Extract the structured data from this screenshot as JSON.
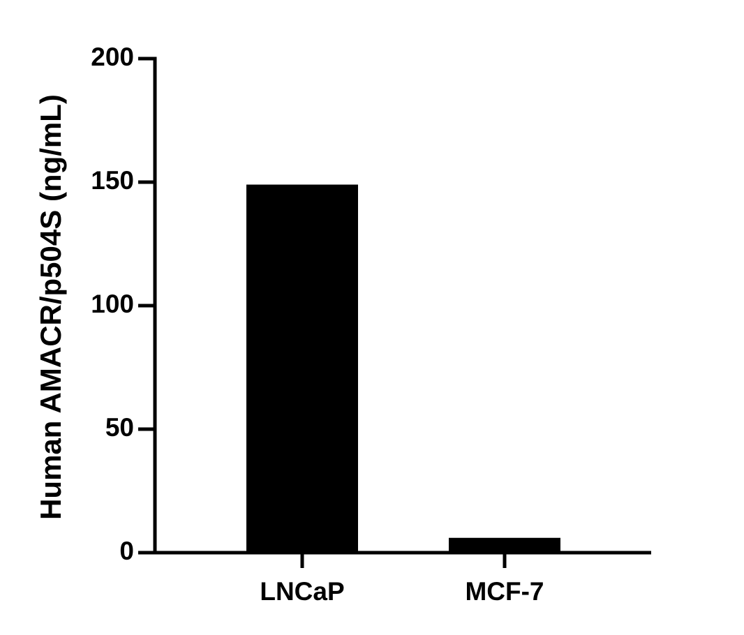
{
  "chart_data": {
    "type": "bar",
    "y_label": "Human AMACR/p504S (ng/mL)",
    "categories": [
      "LNCaP",
      "MCF-7"
    ],
    "values": [
      149,
      6
    ],
    "color": "#000000",
    "ylim": [
      0,
      200
    ],
    "yticks": [
      0,
      50,
      100,
      150,
      200
    ],
    "grid": false
  }
}
